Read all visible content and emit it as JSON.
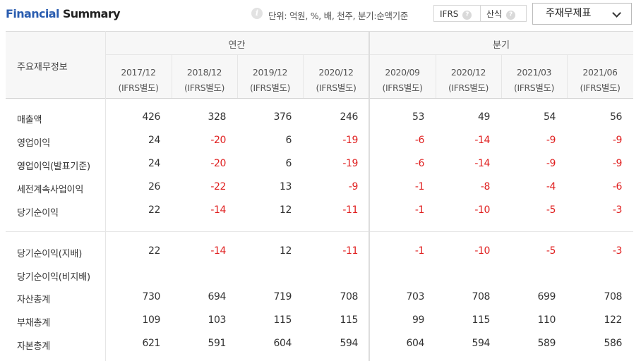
{
  "header": {
    "title_part1": "Financial",
    "title_part2": "Summary",
    "info_icon": "info-icon",
    "unit_text": "단위: 억원, %, 배, 천주, 분기:순액기준",
    "ifrs_label": "IFRS",
    "calc_label": "산식",
    "help_icon": "?",
    "dropdown_label": "주재무제표"
  },
  "table": {
    "row_header_title": "주요재무정보",
    "group_annual": "연간",
    "group_quarterly": "분기",
    "columns": [
      {
        "period": "2017/12",
        "basis": "(IFRS별도)"
      },
      {
        "period": "2018/12",
        "basis": "(IFRS별도)"
      },
      {
        "period": "2019/12",
        "basis": "(IFRS별도)"
      },
      {
        "period": "2020/12",
        "basis": "(IFRS별도)"
      },
      {
        "period": "2020/09",
        "basis": "(IFRS별도)"
      },
      {
        "period": "2020/12",
        "basis": "(IFRS별도)"
      },
      {
        "period": "2021/03",
        "basis": "(IFRS별도)"
      },
      {
        "period": "2021/06",
        "basis": "(IFRS별도)"
      }
    ],
    "rows": [
      {
        "label": "매출액",
        "values": [
          "426",
          "328",
          "376",
          "246",
          "53",
          "49",
          "54",
          "56"
        ]
      },
      {
        "label": "영업이익",
        "values": [
          "24",
          "-20",
          "6",
          "-19",
          "-6",
          "-14",
          "-9",
          "-9"
        ]
      },
      {
        "label": "영업이익(발표기준)",
        "values": [
          "24",
          "-20",
          "6",
          "-19",
          "-6",
          "-14",
          "-9",
          "-9"
        ]
      },
      {
        "label": "세전계속사업이익",
        "values": [
          "26",
          "-22",
          "13",
          "-9",
          "-1",
          "-8",
          "-4",
          "-6"
        ]
      },
      {
        "label": "당기순이익",
        "values": [
          "22",
          "-14",
          "12",
          "-11",
          "-1",
          "-10",
          "-5",
          "-3"
        ]
      },
      {
        "label": "당기순이익(지배)",
        "values": [
          "22",
          "-14",
          "12",
          "-11",
          "-1",
          "-10",
          "-5",
          "-3"
        ]
      },
      {
        "label": "당기순이익(비지배)",
        "values": [
          "",
          "",
          "",
          "",
          "",
          "",
          "",
          ""
        ]
      },
      {
        "label": "자산총계",
        "values": [
          "730",
          "694",
          "719",
          "708",
          "703",
          "708",
          "699",
          "708"
        ]
      },
      {
        "label": "부채총계",
        "values": [
          "109",
          "103",
          "115",
          "115",
          "99",
          "115",
          "110",
          "122"
        ]
      },
      {
        "label": "자본총계",
        "values": [
          "621",
          "591",
          "604",
          "594",
          "604",
          "594",
          "589",
          "586"
        ]
      }
    ]
  },
  "colors": {
    "accent": "#2a5db0",
    "negative": "#e02020"
  }
}
